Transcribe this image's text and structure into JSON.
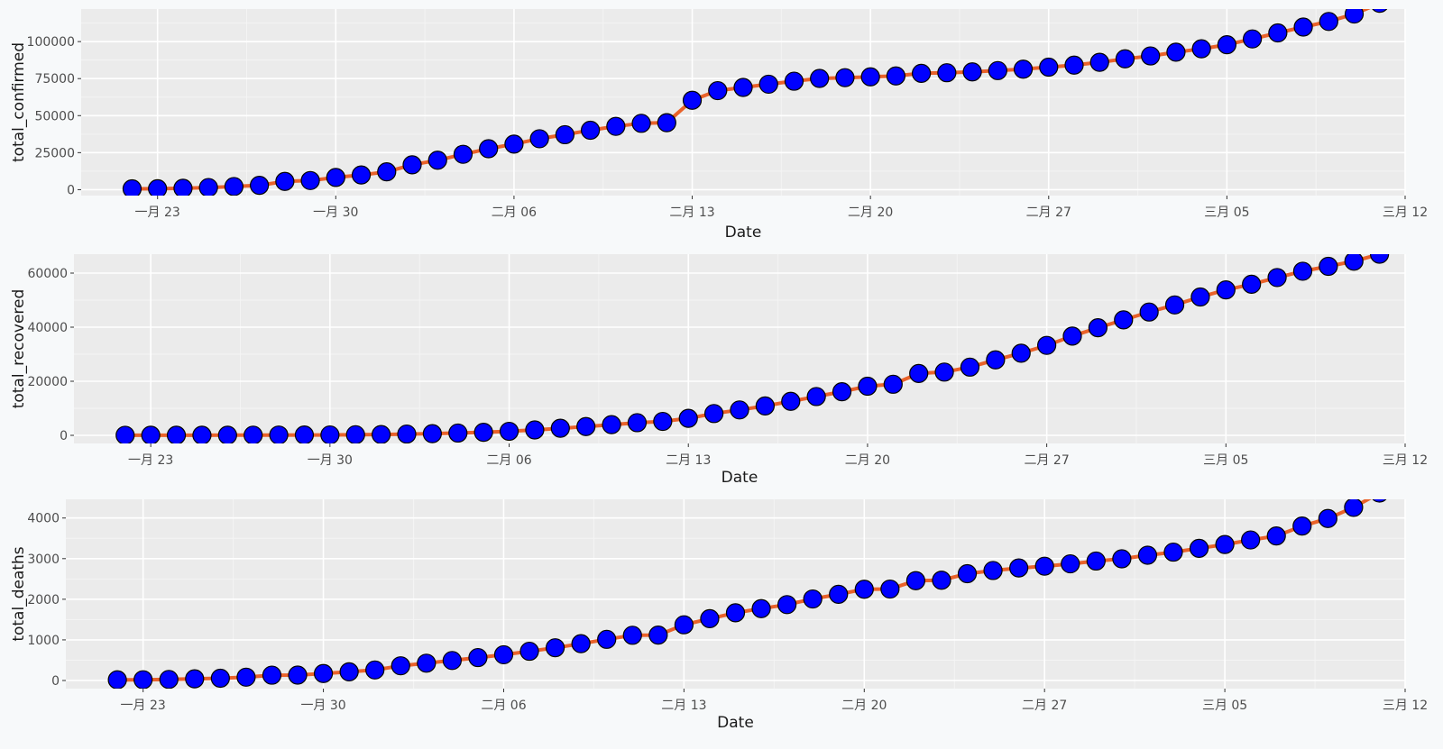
{
  "chart_data": [
    {
      "type": "line",
      "xlabel": "Date",
      "ylabel": "total_confirmed",
      "xlim": [
        "2020-01-20",
        "2020-03-12"
      ],
      "x_ticks": [
        "2020-01-23",
        "2020-01-30",
        "2020-02-06",
        "2020-02-13",
        "2020-02-20",
        "2020-02-27",
        "2020-03-05",
        "2020-03-12"
      ],
      "x_tick_labels": [
        "一月 23",
        "一月 30",
        "二月 06",
        "二月 13",
        "二月 20",
        "二月 27",
        "三月 05",
        "三月 12"
      ],
      "ylim": [
        -4000,
        122000
      ],
      "y_ticks": [
        0,
        25000,
        50000,
        75000,
        100000
      ],
      "y_tick_labels": [
        "0",
        "25000",
        "50000",
        "75000",
        "100000"
      ],
      "x": [
        "2020-01-22",
        "2020-01-23",
        "2020-01-24",
        "2020-01-25",
        "2020-01-26",
        "2020-01-27",
        "2020-01-28",
        "2020-01-29",
        "2020-01-30",
        "2020-01-31",
        "2020-02-01",
        "2020-02-02",
        "2020-02-03",
        "2020-02-04",
        "2020-02-05",
        "2020-02-06",
        "2020-02-07",
        "2020-02-08",
        "2020-02-09",
        "2020-02-10",
        "2020-02-11",
        "2020-02-12",
        "2020-02-13",
        "2020-02-14",
        "2020-02-15",
        "2020-02-16",
        "2020-02-17",
        "2020-02-18",
        "2020-02-19",
        "2020-02-20",
        "2020-02-21",
        "2020-02-22",
        "2020-02-23",
        "2020-02-24",
        "2020-02-25",
        "2020-02-26",
        "2020-02-27",
        "2020-02-28",
        "2020-02-29",
        "2020-03-01",
        "2020-03-02",
        "2020-03-03",
        "2020-03-04",
        "2020-03-05",
        "2020-03-06",
        "2020-03-07",
        "2020-03-08",
        "2020-03-09",
        "2020-03-10",
        "2020-03-11"
      ],
      "y": [
        555,
        654,
        941,
        1434,
        2118,
        2927,
        5578,
        6166,
        8234,
        9927,
        12038,
        16787,
        19881,
        23892,
        27635,
        30794,
        34391,
        37120,
        40150,
        42762,
        44802,
        45221,
        60368,
        66885,
        69030,
        71224,
        73258,
        75136,
        75639,
        76197,
        76819,
        78572,
        78958,
        79561,
        80406,
        81388,
        82746,
        84112,
        86011,
        88369,
        90306,
        92840,
        95120,
        97886,
        101801,
        105847,
        109821,
        113590,
        118620,
        125875
      ],
      "line_color": "#e9622a",
      "point_color": "#0000ff"
    },
    {
      "type": "line",
      "xlabel": "Date",
      "ylabel": "total_recovered",
      "xlim": [
        "2020-01-20",
        "2020-03-12"
      ],
      "x_ticks": [
        "2020-01-23",
        "2020-01-30",
        "2020-02-06",
        "2020-02-13",
        "2020-02-20",
        "2020-02-27",
        "2020-03-05",
        "2020-03-12"
      ],
      "x_tick_labels": [
        "一月 23",
        "一月 30",
        "二月 06",
        "二月 13",
        "二月 20",
        "二月 27",
        "三月 05",
        "三月 12"
      ],
      "ylim": [
        -3000,
        67000
      ],
      "y_ticks": [
        0,
        20000,
        40000,
        60000
      ],
      "y_tick_labels": [
        "0",
        "20000",
        "40000",
        "60000"
      ],
      "x": [
        "2020-01-22",
        "2020-01-23",
        "2020-01-24",
        "2020-01-25",
        "2020-01-26",
        "2020-01-27",
        "2020-01-28",
        "2020-01-29",
        "2020-01-30",
        "2020-01-31",
        "2020-02-01",
        "2020-02-02",
        "2020-02-03",
        "2020-02-04",
        "2020-02-05",
        "2020-02-06",
        "2020-02-07",
        "2020-02-08",
        "2020-02-09",
        "2020-02-10",
        "2020-02-11",
        "2020-02-12",
        "2020-02-13",
        "2020-02-14",
        "2020-02-15",
        "2020-02-16",
        "2020-02-17",
        "2020-02-18",
        "2020-02-19",
        "2020-02-20",
        "2020-02-21",
        "2020-02-22",
        "2020-02-23",
        "2020-02-24",
        "2020-02-25",
        "2020-02-26",
        "2020-02-27",
        "2020-02-28",
        "2020-02-29",
        "2020-03-01",
        "2020-03-02",
        "2020-03-03",
        "2020-03-04",
        "2020-03-05",
        "2020-03-06",
        "2020-03-07",
        "2020-03-08",
        "2020-03-09",
        "2020-03-10",
        "2020-03-11"
      ],
      "y": [
        28,
        30,
        36,
        39,
        52,
        61,
        107,
        126,
        143,
        222,
        284,
        472,
        623,
        852,
        1124,
        1487,
        2011,
        2616,
        3244,
        3946,
        4683,
        5150,
        6295,
        8058,
        9395,
        10865,
        12583,
        14352,
        16121,
        18177,
        18890,
        22886,
        23394,
        25227,
        27905,
        30384,
        33277,
        36711,
        39782,
        42716,
        45602,
        48228,
        51170,
        53796,
        55865,
        58358,
        60694,
        62494,
        64404,
        67003
      ],
      "line_color": "#e9622a",
      "point_color": "#0000ff"
    },
    {
      "type": "line",
      "xlabel": "Date",
      "ylabel": "total_deaths",
      "xlim": [
        "2020-01-20",
        "2020-03-12"
      ],
      "x_ticks": [
        "2020-01-23",
        "2020-01-30",
        "2020-02-06",
        "2020-02-13",
        "2020-02-20",
        "2020-02-27",
        "2020-03-05",
        "2020-03-12"
      ],
      "x_tick_labels": [
        "一月 23",
        "一月 30",
        "二月 06",
        "二月 13",
        "二月 20",
        "二月 27",
        "三月 05",
        "三月 12"
      ],
      "ylim": [
        -200,
        4460
      ],
      "y_ticks": [
        0,
        1000,
        2000,
        3000,
        4000
      ],
      "y_tick_labels": [
        "0",
        "1000",
        "2000",
        "3000",
        "4000"
      ],
      "x": [
        "2020-01-22",
        "2020-01-23",
        "2020-01-24",
        "2020-01-25",
        "2020-01-26",
        "2020-01-27",
        "2020-01-28",
        "2020-01-29",
        "2020-01-30",
        "2020-01-31",
        "2020-02-01",
        "2020-02-02",
        "2020-02-03",
        "2020-02-04",
        "2020-02-05",
        "2020-02-06",
        "2020-02-07",
        "2020-02-08",
        "2020-02-09",
        "2020-02-10",
        "2020-02-11",
        "2020-02-12",
        "2020-02-13",
        "2020-02-14",
        "2020-02-15",
        "2020-02-16",
        "2020-02-17",
        "2020-02-18",
        "2020-02-19",
        "2020-02-20",
        "2020-02-21",
        "2020-02-22",
        "2020-02-23",
        "2020-02-24",
        "2020-02-25",
        "2020-02-26",
        "2020-02-27",
        "2020-02-28",
        "2020-02-29",
        "2020-03-01",
        "2020-03-02",
        "2020-03-03",
        "2020-03-04",
        "2020-03-05",
        "2020-03-06",
        "2020-03-07",
        "2020-03-08",
        "2020-03-09",
        "2020-03-10",
        "2020-03-11"
      ],
      "y": [
        17,
        18,
        26,
        42,
        56,
        82,
        131,
        133,
        171,
        213,
        259,
        362,
        426,
        492,
        564,
        634,
        719,
        806,
        906,
        1013,
        1113,
        1118,
        1371,
        1523,
        1666,
        1770,
        1868,
        2007,
        2122,
        2247,
        2251,
        2458,
        2469,
        2629,
        2708,
        2770,
        2814,
        2872,
        2941,
        2996,
        3085,
        3160,
        3254,
        3348,
        3460,
        3558,
        3802,
        3988,
        4262,
        4615
      ],
      "line_color": "#e9622a",
      "point_color": "#0000ff"
    }
  ]
}
